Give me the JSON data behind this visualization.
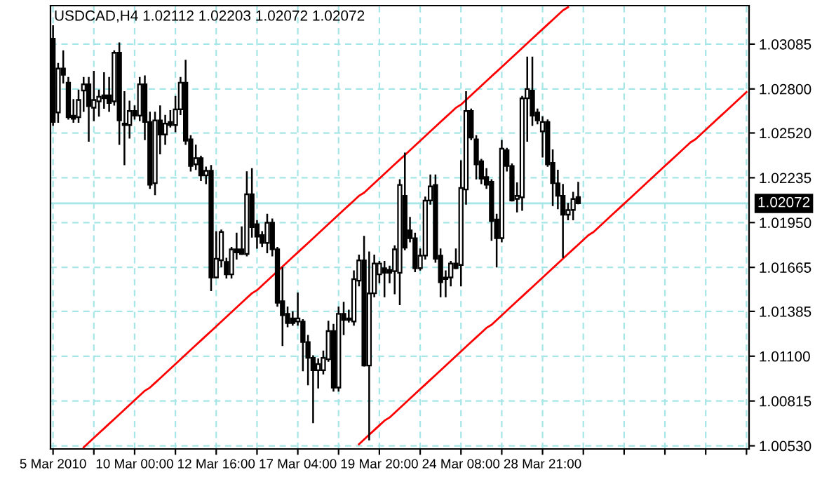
{
  "chart_data": {
    "type": "candlestick",
    "title": "USDCAD,H4 1.02112 1.02203 1.02072 1.02072",
    "categories": [
      "5 Mar 2010",
      null,
      null,
      null,
      null,
      null,
      null,
      null,
      null,
      null,
      null,
      null,
      null,
      null,
      null,
      null,
      "10 Mar 00:00",
      null,
      null,
      null,
      null,
      null,
      null,
      null,
      null,
      null,
      null,
      null,
      null,
      null,
      null,
      null,
      "12 Mar 16:00",
      null,
      null,
      null,
      null,
      null,
      null,
      null,
      null,
      null,
      null,
      null,
      null,
      null,
      null,
      null,
      "17 Mar 04:00",
      null,
      null,
      null,
      null,
      null,
      null,
      null,
      null,
      null,
      null,
      null,
      null,
      null,
      null,
      null,
      "19 Mar 20:00",
      null,
      null,
      null,
      null,
      null,
      null,
      null,
      null,
      null,
      null,
      null,
      null,
      null,
      null,
      null,
      "24 Mar 08:00",
      null,
      null,
      null,
      null,
      null,
      null,
      null,
      null,
      null,
      null,
      null,
      null,
      null,
      null,
      null,
      "28 Mar 21:00",
      null,
      null,
      null,
      null,
      null,
      null,
      null,
      null,
      null,
      null,
      null,
      null,
      null,
      null,
      null,
      null,
      null,
      null,
      null,
      null,
      null,
      null,
      null,
      null,
      null,
      null,
      null,
      null,
      null,
      null,
      null,
      null,
      null,
      null,
      null,
      null,
      null,
      null,
      null,
      null
    ],
    "ohlc": [
      [
        1.0312,
        1.032,
        1.0257,
        1.0259
      ],
      [
        1.0265,
        1.0296,
        1.0259,
        1.0293
      ],
      [
        1.0293,
        1.0304,
        1.0284,
        1.0289
      ],
      [
        1.0284,
        1.0287,
        1.0261,
        1.0262
      ],
      [
        1.0263,
        1.0273,
        1.0259,
        1.0261
      ],
      [
        1.0262,
        1.0279,
        1.0259,
        1.0273
      ],
      [
        1.0279,
        1.0287,
        1.0266,
        1.0283
      ],
      [
        1.0283,
        1.0287,
        1.0247,
        1.0269
      ],
      [
        1.0268,
        1.0291,
        1.026,
        1.0273
      ],
      [
        1.0272,
        1.0279,
        1.0263,
        1.0275
      ],
      [
        1.0276,
        1.029,
        1.0268,
        1.0274
      ],
      [
        1.0276,
        1.0287,
        1.0266,
        1.0271
      ],
      [
        1.0272,
        1.0304,
        1.027,
        1.0303
      ],
      [
        1.0303,
        1.0309,
        1.0245,
        1.026
      ],
      [
        1.0258,
        1.0278,
        1.0232,
        1.0257
      ],
      [
        1.0257,
        1.0272,
        1.0249,
        1.0266
      ],
      [
        1.0266,
        1.0269,
        1.0261,
        1.0263
      ],
      [
        1.0263,
        1.0287,
        1.026,
        1.0283
      ],
      [
        1.0283,
        1.0288,
        1.0248,
        1.0259
      ],
      [
        1.0259,
        1.0265,
        1.0217,
        1.0219
      ],
      [
        1.022,
        1.0265,
        1.0213,
        1.026
      ],
      [
        1.026,
        1.0269,
        1.0239,
        1.0251
      ],
      [
        1.0251,
        1.0263,
        1.0245,
        1.0258
      ],
      [
        1.0259,
        1.0266,
        1.0256,
        1.0257
      ],
      [
        1.0257,
        1.0275,
        1.0253,
        1.0267
      ],
      [
        1.0267,
        1.0287,
        1.0264,
        1.0284
      ],
      [
        1.0284,
        1.0298,
        1.0245,
        1.0247
      ],
      [
        1.0248,
        1.025,
        1.0228,
        1.0231
      ],
      [
        1.0232,
        1.0244,
        1.0229,
        1.0236
      ],
      [
        1.0236,
        1.0237,
        1.0222,
        1.0225
      ],
      [
        1.0225,
        1.023,
        1.022,
        1.0228
      ],
      [
        1.0228,
        1.0231,
        1.0152,
        1.016
      ],
      [
        1.016,
        1.0189,
        1.016,
        1.0172
      ],
      [
        1.0171,
        1.019,
        1.0167,
        1.0189
      ],
      [
        1.017,
        1.0172,
        1.016,
        1.0162
      ],
      [
        1.0162,
        1.0179,
        1.016,
        1.0178
      ],
      [
        1.0178,
        1.0188,
        1.0172,
        1.0176
      ],
      [
        1.0178,
        1.0192,
        1.0175,
        1.0175
      ],
      [
        1.0175,
        1.0227,
        1.0174,
        1.0213
      ],
      [
        1.0213,
        1.0229,
        1.0186,
        1.0192
      ],
      [
        1.0194,
        1.0196,
        1.0179,
        1.0186
      ],
      [
        1.0187,
        1.0189,
        1.018,
        1.0182
      ],
      [
        1.0182,
        1.02,
        1.0176,
        1.0195
      ],
      [
        1.0195,
        1.0197,
        1.0174,
        1.0178
      ],
      [
        1.0178,
        1.0179,
        1.0142,
        1.0144
      ],
      [
        1.0145,
        1.0166,
        1.0117,
        1.0136
      ],
      [
        1.0137,
        1.0141,
        1.0129,
        1.0131
      ],
      [
        1.0134,
        1.0138,
        1.013,
        1.0131
      ],
      [
        1.0132,
        1.015,
        1.013,
        1.0134
      ],
      [
        1.0132,
        1.0133,
        1.0101,
        1.0119
      ],
      [
        1.0119,
        1.0123,
        1.0092,
        1.0109
      ],
      [
        1.0109,
        1.011,
        1.0068,
        1.0101
      ],
      [
        1.0101,
        1.0108,
        1.009,
        1.0105
      ],
      [
        1.0101,
        1.0113,
        1.0099,
        1.0109
      ],
      [
        1.0108,
        1.0132,
        1.0107,
        1.0126
      ],
      [
        1.0126,
        1.013,
        1.0088,
        1.009
      ],
      [
        1.009,
        1.0141,
        1.0088,
        1.0137
      ],
      [
        1.0137,
        1.0144,
        1.0124,
        1.0133
      ],
      [
        1.0134,
        1.0139,
        1.0132,
        1.0133
      ],
      [
        1.0132,
        1.0164,
        1.013,
        1.0159
      ],
      [
        1.0158,
        1.0174,
        1.0155,
        1.0171
      ],
      [
        1.0171,
        1.0186,
        1.0104,
        1.0104
      ],
      [
        1.0104,
        1.0176,
        1.0057,
        1.015
      ],
      [
        1.015,
        1.0174,
        1.0148,
        1.0169
      ],
      [
        1.0162,
        1.017,
        1.0157,
        1.0169
      ],
      [
        1.0166,
        1.017,
        1.0148,
        1.0163
      ],
      [
        1.0165,
        1.0167,
        1.0157,
        1.0163
      ],
      [
        1.0164,
        1.018,
        1.015,
        1.0178
      ],
      [
        1.0163,
        1.0222,
        1.0143,
        1.0219
      ],
      [
        1.0212,
        1.0239,
        1.0178,
        1.0179
      ],
      [
        1.019,
        1.0198,
        1.0183,
        1.0185
      ],
      [
        1.0185,
        1.0188,
        1.0164,
        1.0166
      ],
      [
        1.0166,
        1.0178,
        1.0165,
        1.0174
      ],
      [
        1.0174,
        1.0211,
        1.0172,
        1.0209
      ],
      [
        1.0209,
        1.0225,
        1.0207,
        1.0218
      ],
      [
        1.0219,
        1.0225,
        1.017,
        1.0172
      ],
      [
        1.0174,
        1.0178,
        1.0148,
        1.0157
      ],
      [
        1.0159,
        1.0164,
        1.0148,
        1.016
      ],
      [
        1.016,
        1.017,
        1.0155,
        1.0169
      ],
      [
        1.0169,
        1.0178,
        1.0166,
        1.0166
      ],
      [
        1.0168,
        1.0234,
        1.0155,
        1.0217
      ],
      [
        1.0216,
        1.0278,
        1.0207,
        1.0266
      ],
      [
        1.0266,
        1.0267,
        1.0248,
        1.0249
      ],
      [
        1.0248,
        1.025,
        1.0223,
        1.0232
      ],
      [
        1.0234,
        1.0235,
        1.022,
        1.0223
      ],
      [
        1.0224,
        1.0229,
        1.0217,
        1.0219
      ],
      [
        1.0221,
        1.0222,
        1.0184,
        1.0196
      ],
      [
        1.0197,
        1.02,
        1.0167,
        1.0185
      ],
      [
        1.0185,
        1.0247,
        1.0183,
        1.0242
      ],
      [
        1.0241,
        1.0242,
        1.0228,
        1.0231
      ],
      [
        1.0231,
        1.0232,
        1.0209,
        1.0209
      ],
      [
        1.021,
        1.022,
        1.0202,
        1.0212
      ],
      [
        1.0211,
        1.0275,
        1.0203,
        1.0274
      ],
      [
        1.0274,
        1.03,
        1.0247,
        1.028
      ],
      [
        1.0279,
        1.03,
        1.0257,
        1.0263
      ],
      [
        1.0265,
        1.0267,
        1.0258,
        1.026
      ],
      [
        1.0253,
        1.0262,
        1.0237,
        1.0259
      ],
      [
        1.0259,
        1.026,
        1.0231,
        1.0232
      ],
      [
        1.0233,
        1.0241,
        1.0206,
        1.022
      ],
      [
        1.022,
        1.0228,
        1.0204,
        1.0212
      ],
      [
        1.0212,
        1.0219,
        1.0173,
        1.02
      ],
      [
        1.02,
        1.0207,
        1.0197,
        1.0203
      ],
      [
        1.0203,
        1.0214,
        1.0197,
        1.021
      ],
      [
        1.02112,
        1.02203,
        1.02072,
        1.02072
      ],
      null,
      null,
      null,
      null,
      null,
      null,
      null,
      null,
      null,
      null,
      null,
      null,
      null,
      null,
      null,
      null,
      null,
      null,
      null,
      null,
      null,
      null,
      null,
      null,
      null,
      null,
      null,
      null,
      null,
      null,
      null,
      null,
      null
    ],
    "series": [
      {
        "type": "line",
        "color": "#ff0000",
        "values": [
          null,
          null,
          null,
          null,
          null,
          null,
          1.0052,
          1.0055,
          1.0058,
          1.0061,
          1.0064,
          1.0067,
          1.007,
          1.0073,
          1.0076,
          1.0079,
          1.0082,
          1.0085,
          1.0088,
          1.009,
          1.0093,
          1.0096,
          1.0099,
          1.0102,
          1.0105,
          1.0108,
          1.0111,
          1.0114,
          1.0117,
          1.012,
          1.0123,
          1.0126,
          1.0129,
          1.0132,
          1.0135,
          1.0138,
          1.0141,
          1.0144,
          1.0147,
          1.015,
          1.0152,
          1.0155,
          1.0158,
          1.0161,
          1.0164,
          1.0167,
          1.017,
          1.0173,
          1.0176,
          1.0179,
          1.0182,
          1.0185,
          1.0188,
          1.0191,
          1.0194,
          1.0197,
          1.02,
          1.0203,
          1.0206,
          1.0209,
          1.0212,
          1.0214,
          1.0217,
          1.022,
          1.0223,
          1.0226,
          1.0229,
          1.0232,
          1.0235,
          1.0238,
          1.0241,
          1.0244,
          1.0247,
          1.025,
          1.0253,
          1.0256,
          1.0259,
          1.0262,
          1.0265,
          1.0268,
          1.027,
          1.0273,
          1.0276,
          1.0279,
          1.0282,
          1.0285,
          1.0288,
          1.0291,
          1.0294,
          1.0297,
          1.03,
          1.0303,
          1.0306,
          1.0309,
          1.0312,
          1.0315,
          1.0318,
          1.0321,
          1.0324,
          1.0327,
          1.033,
          1.0332,
          null,
          null,
          null,
          null,
          null,
          null,
          null,
          null,
          null,
          null,
          null,
          null,
          null,
          null,
          null,
          null,
          null,
          null,
          null,
          null,
          null,
          null,
          null,
          null,
          null,
          null,
          null,
          null,
          null,
          null,
          null,
          null,
          null,
          null,
          null
        ]
      },
      {
        "type": "line",
        "color": "#ff0000",
        "values": [
          null,
          null,
          null,
          null,
          null,
          null,
          null,
          null,
          null,
          null,
          null,
          null,
          null,
          null,
          null,
          null,
          null,
          null,
          null,
          null,
          null,
          null,
          null,
          null,
          null,
          null,
          null,
          null,
          null,
          null,
          null,
          null,
          null,
          null,
          null,
          null,
          null,
          null,
          null,
          null,
          null,
          null,
          null,
          null,
          null,
          null,
          null,
          null,
          null,
          null,
          null,
          null,
          null,
          null,
          null,
          null,
          null,
          null,
          null,
          null,
          1.0054,
          1.0057,
          1.006,
          1.0063,
          1.0066,
          1.0069,
          1.0071,
          1.0074,
          1.0077,
          1.008,
          1.0083,
          1.0086,
          1.0089,
          1.0092,
          1.0095,
          1.0098,
          1.0101,
          1.0104,
          1.0107,
          1.011,
          1.0113,
          1.0116,
          1.0119,
          1.0122,
          1.0125,
          1.0128,
          1.013,
          1.0133,
          1.0136,
          1.0139,
          1.0142,
          1.0145,
          1.0148,
          1.0151,
          1.0154,
          1.0157,
          1.016,
          1.0163,
          1.0166,
          1.0169,
          1.0172,
          1.0175,
          1.0178,
          1.0181,
          1.0184,
          1.0187,
          1.0189,
          1.0192,
          1.0195,
          1.0198,
          1.0201,
          1.0204,
          1.0207,
          1.021,
          1.0213,
          1.0216,
          1.0219,
          1.0222,
          1.0225,
          1.0228,
          1.0231,
          1.0234,
          1.0237,
          1.024,
          1.0243,
          1.0246,
          1.0248,
          1.0251,
          1.0254,
          1.0257,
          1.026,
          1.0263,
          1.0266,
          1.0269,
          1.0272,
          1.0275,
          1.0278
        ]
      }
    ],
    "ylim": [
      1.0051,
      1.0333
    ],
    "yticks": [
      {
        "value": 1.0053,
        "label": "1.00530"
      },
      {
        "value": 1.00815,
        "label": "1.00815"
      },
      {
        "value": 1.011,
        "label": "1.01100"
      },
      {
        "value": 1.01385,
        "label": "1.01385"
      },
      {
        "value": 1.01665,
        "label": "1.01665"
      },
      {
        "value": 1.0195,
        "label": "1.01950"
      },
      {
        "value": 1.02235,
        "label": "1.02235"
      },
      {
        "value": 1.0252,
        "label": "1.02520"
      },
      {
        "value": 1.028,
        "label": "1.02800"
      },
      {
        "value": 1.03085,
        "label": "1.03085"
      }
    ],
    "ref_lines": [
      {
        "axis": "y",
        "value": 1.02072,
        "label": "1.02072",
        "color": "#a6e6e6"
      }
    ],
    "grid": true
  }
}
